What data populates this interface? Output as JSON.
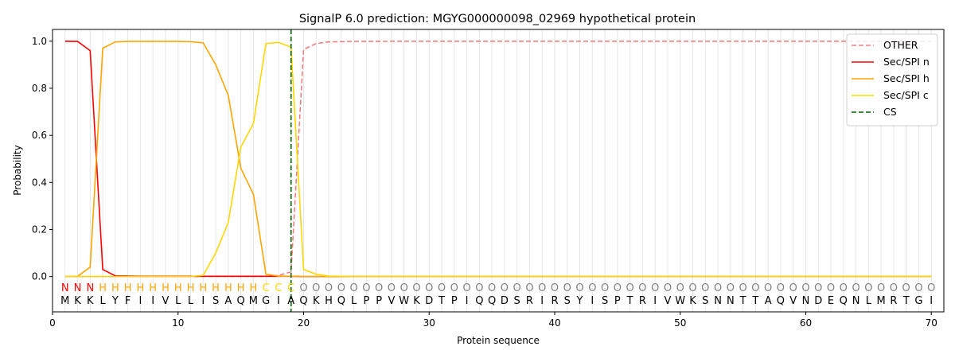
{
  "chart_data": {
    "type": "line",
    "title": "SignalP 6.0 prediction: MGYG000000098_02969 hypothetical protein",
    "xlabel": "Protein sequence",
    "ylabel": "Probability",
    "xlim": [
      0,
      71
    ],
    "ylim": [
      -0.15,
      1.05
    ],
    "x_ticks": [
      0,
      10,
      20,
      30,
      40,
      50,
      60,
      70
    ],
    "y_ticks": [
      0.0,
      0.2,
      0.4,
      0.6,
      0.8,
      1.0
    ],
    "x_tick_labels": [
      "0",
      "10",
      "20",
      "30",
      "40",
      "50",
      "60",
      "70"
    ],
    "y_tick_labels": [
      "0.0",
      "0.2",
      "0.4",
      "0.6",
      "0.8",
      "1.0"
    ],
    "grid": "vertical lines at every residue",
    "legend_position": "top-right",
    "sequence": [
      "M",
      "K",
      "K",
      "L",
      "Y",
      "F",
      "I",
      "I",
      "V",
      "L",
      "L",
      "I",
      "S",
      "A",
      "Q",
      "M",
      "G",
      "I",
      "A",
      "Q",
      "K",
      "H",
      "Q",
      "L",
      "P",
      "P",
      "V",
      "W",
      "K",
      "D",
      "T",
      "P",
      "I",
      "Q",
      "Q",
      "D",
      "S",
      "R",
      "I",
      "R",
      "S",
      "Y",
      "I",
      "S",
      "P",
      "T",
      "R",
      "I",
      "V",
      "W",
      "K",
      "S",
      "N",
      "N",
      "T",
      "T",
      "A",
      "Q",
      "V",
      "N",
      "D",
      "E",
      "Q",
      "N",
      "L",
      "M",
      "R",
      "T",
      "G",
      "I"
    ],
    "states": [
      "N",
      "N",
      "N",
      "H",
      "H",
      "H",
      "H",
      "H",
      "H",
      "H",
      "H",
      "H",
      "H",
      "H",
      "H",
      "H",
      "C",
      "C",
      "C",
      "O",
      "O",
      "O",
      "O",
      "O",
      "O",
      "O",
      "O",
      "O",
      "O",
      "O",
      "O",
      "O",
      "O",
      "O",
      "O",
      "O",
      "O",
      "O",
      "O",
      "O",
      "O",
      "O",
      "O",
      "O",
      "O",
      "O",
      "O",
      "O",
      "O",
      "O",
      "O",
      "O",
      "O",
      "O",
      "O",
      "O",
      "O",
      "O",
      "O",
      "O",
      "O",
      "O",
      "O",
      "O",
      "O",
      "O",
      "O",
      "O",
      "O",
      "O"
    ],
    "state_colors": {
      "N": "#ff0000",
      "H": "#ffa500",
      "C": "#ffd700",
      "O": "#808080"
    },
    "series": [
      {
        "name": "OTHER",
        "color": "#f08080",
        "dash": "dashed",
        "values": [
          0,
          0,
          0,
          0,
          0,
          0,
          0,
          0,
          0,
          0,
          0,
          0,
          0,
          0,
          0,
          0,
          0,
          0.005,
          0.02,
          0.965,
          0.99,
          0.997,
          0.998,
          0.999,
          0.999,
          0.999,
          1,
          1,
          1,
          1,
          1,
          1,
          1,
          1,
          1,
          1,
          1,
          1,
          1,
          1,
          1,
          1,
          1,
          1,
          1,
          1,
          1,
          1,
          1,
          1,
          1,
          1,
          1,
          1,
          1,
          1,
          1,
          1,
          1,
          1,
          1,
          1,
          1,
          1,
          1,
          1,
          1,
          1,
          1,
          1
        ]
      },
      {
        "name": "Sec/SPI n",
        "color": "#ff0000",
        "dash": "solid",
        "values": [
          1.0,
          0.999,
          0.96,
          0.03,
          0.003,
          0.002,
          0.001,
          0.001,
          0.001,
          0.001,
          0.001,
          0.001,
          0.001,
          0.001,
          0.001,
          0.001,
          0.001,
          0.001,
          0.001,
          0,
          0,
          0,
          0,
          0,
          0,
          0,
          0,
          0,
          0,
          0,
          0,
          0,
          0,
          0,
          0,
          0,
          0,
          0,
          0,
          0,
          0,
          0,
          0,
          0,
          0,
          0,
          0,
          0,
          0,
          0,
          0,
          0,
          0,
          0,
          0,
          0,
          0,
          0,
          0,
          0,
          0,
          0,
          0,
          0,
          0,
          0,
          0,
          0,
          0,
          0
        ]
      },
      {
        "name": "Sec/SPI h",
        "color": "#ffa500",
        "dash": "solid",
        "values": [
          0,
          0.001,
          0.04,
          0.97,
          0.997,
          0.999,
          0.999,
          0.999,
          0.999,
          0.999,
          0.998,
          0.993,
          0.9,
          0.77,
          0.46,
          0.35,
          0.01,
          0.002,
          0.001,
          0,
          0,
          0,
          0,
          0,
          0,
          0,
          0,
          0,
          0,
          0,
          0,
          0,
          0,
          0,
          0,
          0,
          0,
          0,
          0,
          0,
          0,
          0,
          0,
          0,
          0,
          0,
          0,
          0,
          0,
          0,
          0,
          0,
          0,
          0,
          0,
          0,
          0,
          0,
          0,
          0,
          0,
          0,
          0,
          0,
          0,
          0,
          0,
          0,
          0,
          0
        ]
      },
      {
        "name": "Sec/SPI c",
        "color": "#ffd700",
        "dash": "solid",
        "values": [
          0,
          0,
          0,
          0,
          0,
          0,
          0,
          0,
          0,
          0,
          0,
          0.005,
          0.1,
          0.23,
          0.55,
          0.65,
          0.99,
          0.995,
          0.975,
          0.03,
          0.01,
          0.002,
          0.001,
          0,
          0,
          0,
          0,
          0,
          0,
          0,
          0,
          0,
          0,
          0,
          0,
          0,
          0,
          0,
          0,
          0,
          0,
          0,
          0,
          0,
          0,
          0,
          0,
          0,
          0,
          0,
          0,
          0,
          0,
          0,
          0,
          0,
          0,
          0,
          0,
          0,
          0,
          0,
          0,
          0,
          0,
          0,
          0,
          0,
          0,
          0
        ]
      }
    ],
    "cs": {
      "name": "CS",
      "color": "#006400",
      "dash": "dashed",
      "x": 19
    }
  }
}
